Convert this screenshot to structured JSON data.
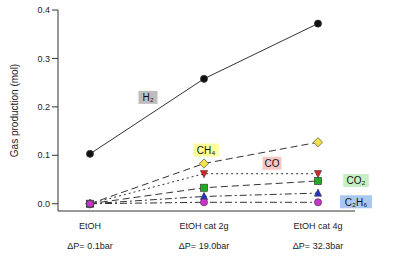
{
  "chart_data": {
    "type": "line",
    "y_label": "Gas production (mol)",
    "categories": [
      "EtOH",
      "EtOH cat 2g",
      "EtOH cat 4g"
    ],
    "x_sublabels": [
      "ΔP= 0.1bar",
      "ΔP= 19.0bar",
      "ΔP= 32.3bar"
    ],
    "ylim": [
      -0.015,
      0.4
    ],
    "yticks": [
      {
        "value": 0,
        "label": "0.0"
      },
      0.1,
      0.2,
      0.3,
      0.4
    ],
    "grid": false,
    "series": [
      {
        "name": "H₂",
        "color": "#111111",
        "marker": "circle",
        "line_style": "solid",
        "values": [
          0.103,
          0.258,
          0.372
        ]
      },
      {
        "name": "CH₄",
        "color": "#f2e24a",
        "marker": "diamond",
        "line_style": "dashed",
        "values": [
          0,
          0.083,
          0.127
        ]
      },
      {
        "name": "CO",
        "color": "#dd2222",
        "marker": "triangle-down",
        "line_style": "dotted",
        "values": [
          0,
          0.062,
          0.062
        ]
      },
      {
        "name": "CO₂",
        "color": "#22aa22",
        "marker": "square",
        "line_style": "dashed",
        "values": [
          0,
          0.033,
          0.047
        ]
      },
      {
        "color": "#2233cc",
        "marker": "triangle-up",
        "line_style": "dashdot",
        "values": [
          0,
          0.015,
          0.022
        ]
      },
      {
        "name": "C₂H₆",
        "color": "#cc33cc",
        "marker": "circle",
        "line_style": "dashdot",
        "values": [
          0,
          0.003,
          0.003
        ]
      }
    ]
  }
}
